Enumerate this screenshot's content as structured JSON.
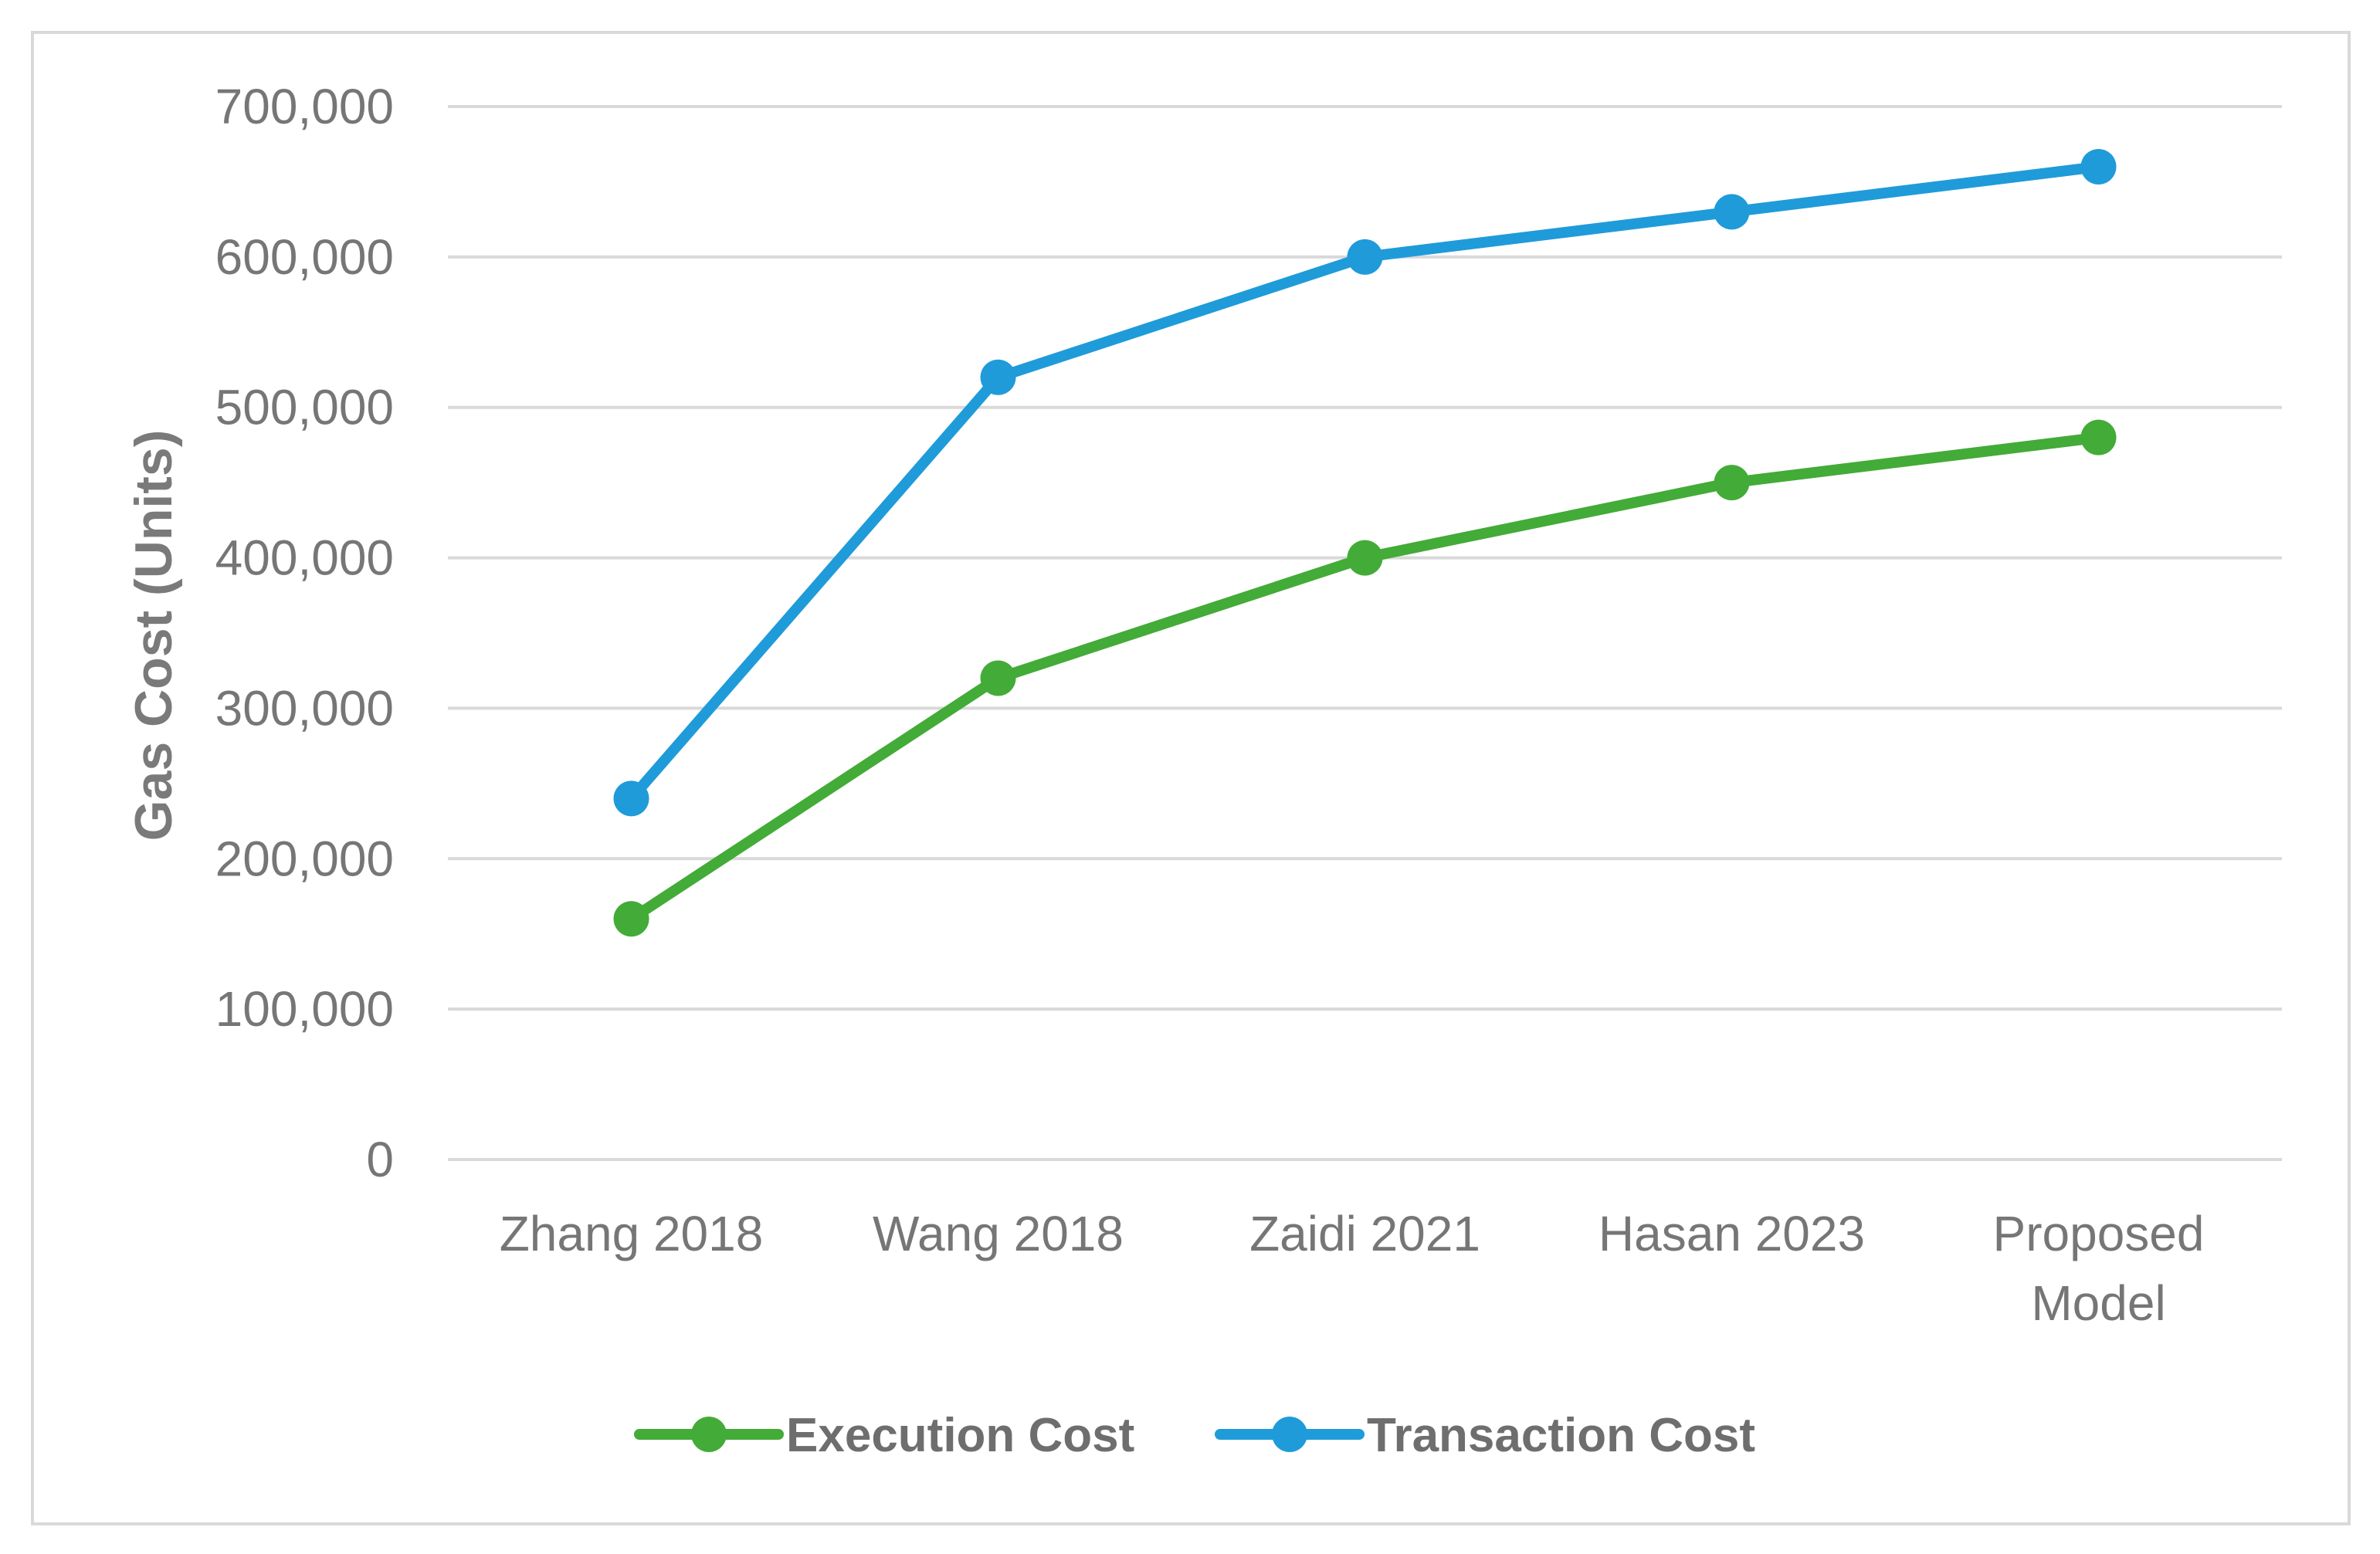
{
  "chart_data": {
    "type": "line",
    "categories": [
      "Zhang 2018",
      "Wang 2018",
      "Zaidi 2021",
      "Hasan 2023",
      "Proposed Model"
    ],
    "series": [
      {
        "name": "Execution Cost",
        "values": [
          160000,
          320000,
          400000,
          450000,
          480000
        ],
        "color": "#43ab37"
      },
      {
        "name": "Transaction Cost",
        "values": [
          240000,
          520000,
          600000,
          630000,
          660000
        ],
        "color": "#1f9bd9"
      }
    ],
    "title": "",
    "xlabel": "",
    "ylabel": "Gas Cost (Units)",
    "ylim": [
      0,
      700000
    ],
    "yticks": [
      0,
      100000,
      200000,
      300000,
      400000,
      500000,
      600000,
      700000
    ],
    "ytick_labels": [
      "0",
      "100,000",
      "200,000",
      "300,000",
      "400,000",
      "500,000",
      "600,000",
      "700,000"
    ],
    "grid": "horizontal",
    "legend_position": "bottom",
    "gridline_color": "#d9d9d9"
  }
}
